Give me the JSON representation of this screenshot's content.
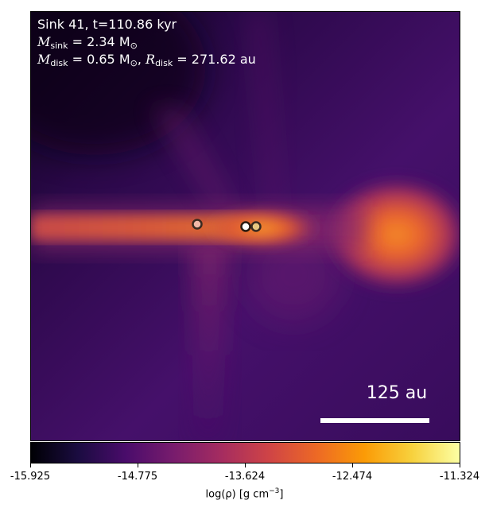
{
  "info": {
    "line1": "Sink 41, t=110.86 kyr",
    "msink_symbol": "M",
    "msink_sub": "sink",
    "msink_value": " = 2.34 M",
    "mdisk_symbol": "M",
    "mdisk_sub": "disk",
    "mdisk_value": " = 0.65 M",
    "rdisk_symbol": "R",
    "rdisk_sub": "disk",
    "rdisk_value": " = 271.62 au",
    "sun_symbol": "⊙"
  },
  "scale_bar": {
    "label": "125 au"
  },
  "colorbar": {
    "ticks": [
      "-15.925",
      "-14.775",
      "-13.624",
      "-12.474",
      "-11.324"
    ],
    "label_main": "log(ρ) [g cm",
    "label_exp": "−3",
    "label_end": "]",
    "colormap": "inferno"
  },
  "colors": {
    "background": "#3a0a5e",
    "disk": "#d9502f",
    "hotspot": "#f07a28",
    "sink_outline": "#3a2a20"
  },
  "sinks": [
    {
      "name": "sink-left",
      "fill": "#f0b8a8"
    },
    {
      "name": "sink-center",
      "fill": "#ffffff"
    },
    {
      "name": "sink-right",
      "fill": "#e8c880"
    }
  ]
}
